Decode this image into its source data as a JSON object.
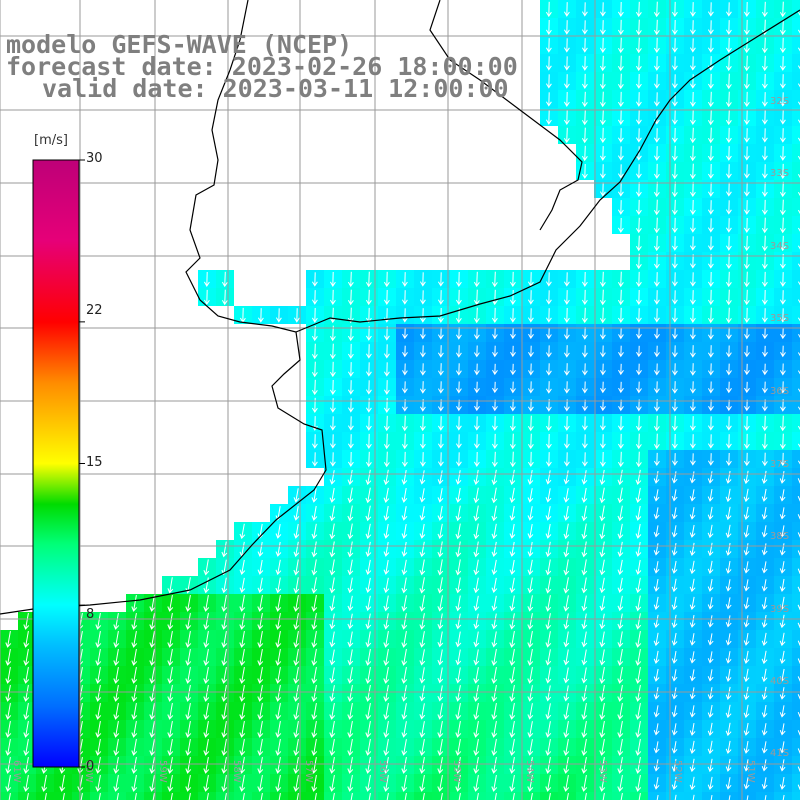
{
  "title": {
    "line1": "modelo GEFS-WAVE (NCEP)",
    "line2": "forecast date: 2023-02-26 18:00:00",
    "line3": "valid date: 2023-03-11 12:00:00"
  },
  "colorbar": {
    "unit": "[m/s]",
    "ticks": [
      "30",
      "22",
      "15",
      "8",
      "0"
    ],
    "tick_values": [
      30,
      22,
      15,
      8,
      0
    ],
    "min": 0,
    "max": 30
  },
  "grid": {
    "lat_labels": [
      "32S",
      "33S",
      "34S",
      "35S",
      "36S",
      "37S",
      "38S",
      "39S",
      "40S",
      "41S"
    ],
    "lon_labels": [
      "61W",
      "60W",
      "59W",
      "58W",
      "57W",
      "56W",
      "55W",
      "54W",
      "53W",
      "52W",
      "51W"
    ]
  },
  "field": {
    "variable": "wind speed",
    "units": "m/s",
    "coastal_speed": 8,
    "offshore_speed": 5,
    "south_speed": 11
  },
  "colors": {
    "land": "#ffffff",
    "coastline": "#000000",
    "grid": "#9a9a9a",
    "arrow": "#ffffff"
  }
}
